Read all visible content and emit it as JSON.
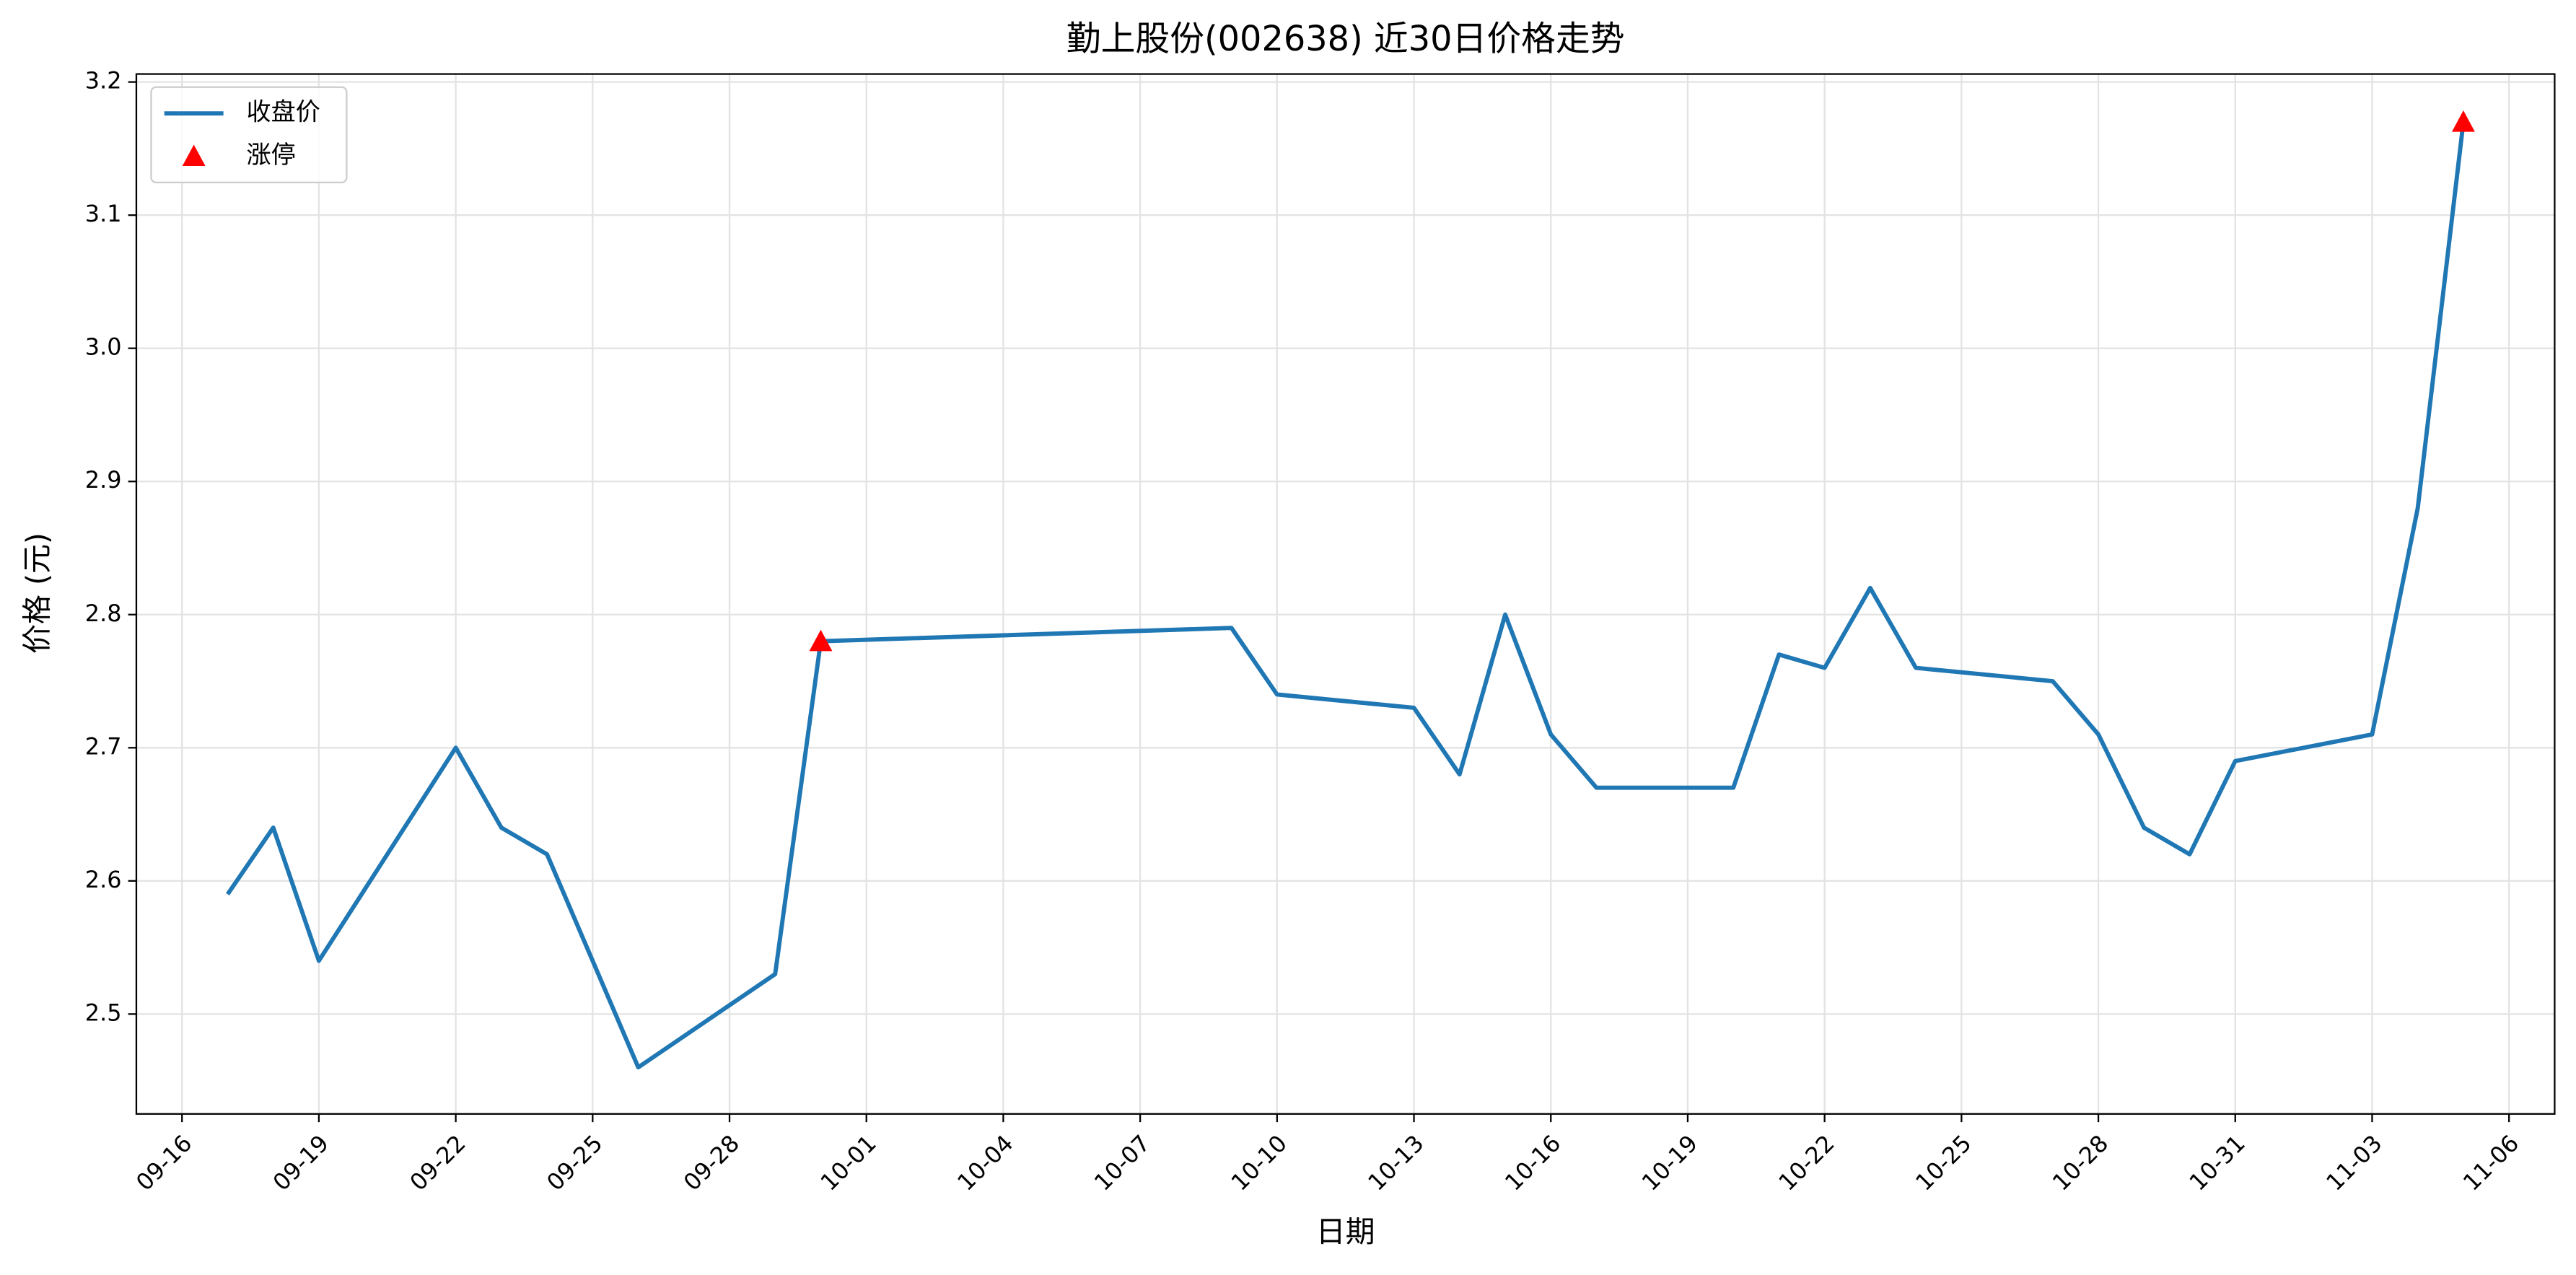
{
  "chart_data": {
    "type": "line",
    "title": "勤上股份(002638) 近30日价格走势",
    "xlabel": "日期",
    "ylabel": "价格 (元)",
    "series": [
      {
        "name": "收盘价",
        "type": "line",
        "color": "#1f77b4",
        "x": [
          "09-17",
          "09-18",
          "09-19",
          "09-22",
          "09-23",
          "09-24",
          "09-26",
          "09-29",
          "09-30",
          "10-09",
          "10-10",
          "10-13",
          "10-14",
          "10-15",
          "10-16",
          "10-17",
          "10-20",
          "10-21",
          "10-22",
          "10-23",
          "10-24",
          "10-27",
          "10-28",
          "10-29",
          "10-30",
          "10-31",
          "11-03",
          "11-04",
          "11-05"
        ],
        "values": [
          2.59,
          2.64,
          2.54,
          2.7,
          2.64,
          2.62,
          2.46,
          2.53,
          2.78,
          2.79,
          2.74,
          2.73,
          2.68,
          2.8,
          2.71,
          2.67,
          2.67,
          2.77,
          2.76,
          2.82,
          2.76,
          2.75,
          2.71,
          2.64,
          2.62,
          2.69,
          2.71,
          2.88,
          3.17
        ]
      },
      {
        "name": "涨停",
        "type": "scatter",
        "color": "#ff0000",
        "x": [
          "09-30",
          "11-05"
        ],
        "values": [
          2.78,
          3.17
        ]
      }
    ],
    "xlim": [
      "09-15",
      "11-07"
    ],
    "xticks": [
      "09-16",
      "09-19",
      "09-22",
      "09-25",
      "09-28",
      "10-01",
      "10-04",
      "10-07",
      "10-10",
      "10-13",
      "10-16",
      "10-19",
      "10-22",
      "10-25",
      "10-28",
      "10-31",
      "11-03",
      "11-06"
    ],
    "ylim": [
      2.425,
      3.206
    ],
    "yticks": [
      {
        "value": 2.5,
        "label": "2.5"
      },
      {
        "value": 2.6,
        "label": "2.6"
      },
      {
        "value": 2.7,
        "label": "2.7"
      },
      {
        "value": 2.8,
        "label": "2.8"
      },
      {
        "value": 2.9,
        "label": "2.9"
      },
      {
        "value": 3.0,
        "label": "3.0"
      },
      {
        "value": 3.1,
        "label": "3.1"
      },
      {
        "value": 3.2,
        "label": "3.2"
      }
    ],
    "grid": true,
    "legend": "upper left"
  }
}
